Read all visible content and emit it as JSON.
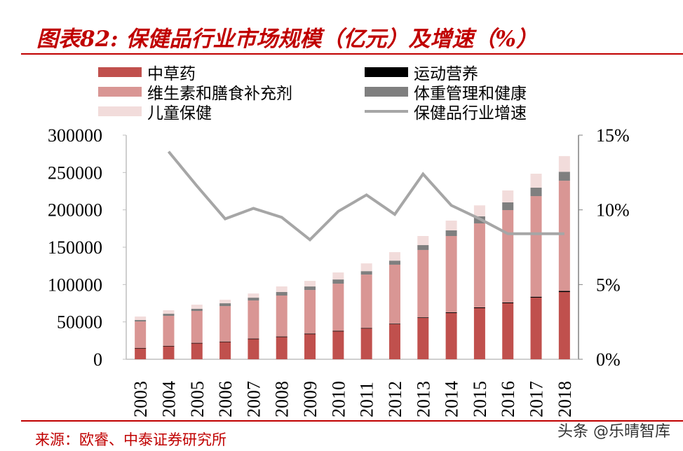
{
  "title": "图表82: 保健品行业市场规模（亿元）及增速（%）",
  "source": "来源：欧睿、中泰证券研究所",
  "watermark": "头条 @乐晴智库",
  "chart_data": {
    "type": "bar",
    "stacked": true,
    "title": "图表82: 保健品行业市场规模（亿元）及增速（%）",
    "categories": [
      "2003",
      "2004",
      "2005",
      "2006",
      "2007",
      "2008",
      "2009",
      "2010",
      "2011",
      "2012",
      "2013",
      "2014",
      "2015",
      "2016",
      "2017",
      "2018"
    ],
    "series": [
      {
        "name": "中草药",
        "color": "#c0504d",
        "values": [
          15000,
          17800,
          21600,
          23400,
          27200,
          30000,
          33750,
          37500,
          41250,
          46900,
          55300,
          61900,
          68400,
          75000,
          82500,
          90000
        ]
      },
      {
        "name": "运动营养",
        "color": "#000000",
        "values": [
          200,
          200,
          300,
          300,
          400,
          400,
          500,
          500,
          600,
          700,
          800,
          900,
          1000,
          1100,
          1200,
          1400
        ]
      },
      {
        "name": "维生素和膳食补充剂",
        "color": "#d99694",
        "values": [
          35400,
          40100,
          42800,
          47500,
          51100,
          54900,
          58500,
          63200,
          71500,
          79000,
          90200,
          102200,
          112500,
          123600,
          134700,
          147600
        ]
      },
      {
        "name": "体重管理和健康",
        "color": "#7f7f7f",
        "values": [
          1900,
          2800,
          2800,
          3750,
          3750,
          4700,
          4700,
          5600,
          4600,
          5400,
          6500,
          7500,
          9400,
          10300,
          11300,
          12000
        ]
      },
      {
        "name": "儿童保健",
        "color": "#f2dcdb",
        "values": [
          4700,
          4700,
          5600,
          4700,
          5600,
          7500,
          7500,
          9400,
          10400,
          11400,
          12200,
          13100,
          14700,
          16000,
          18700,
          21000
        ]
      }
    ],
    "line_series": {
      "name": "保健品行业增速",
      "color": "#a6a6a6",
      "axis": "right",
      "values": [
        null,
        13.9,
        11.6,
        9.4,
        10.1,
        9.5,
        8.0,
        9.9,
        11.0,
        9.7,
        12.4,
        10.3,
        9.4,
        8.4,
        8.4,
        8.4
      ]
    },
    "y_left": {
      "ylim": [
        0,
        300000
      ],
      "ticks": [
        "0",
        "50000",
        "100000",
        "150000",
        "200000",
        "250000",
        "300000"
      ]
    },
    "y_right": {
      "ylim": [
        0,
        15
      ],
      "ticks": [
        "0%",
        "5%",
        "10%",
        "15%"
      ]
    },
    "grid": false,
    "legend_placement": "top"
  }
}
